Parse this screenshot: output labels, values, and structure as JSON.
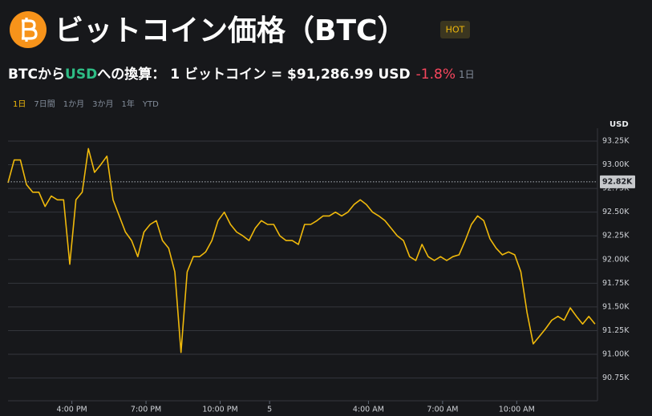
{
  "header": {
    "title": "ビットコイン価格（BTC）",
    "badge": "HOT",
    "conversion": {
      "from": "BTCから",
      "currency": "USD",
      "to": "への換算：",
      "rate": "1 ビットコイン = $91,286.99 USD",
      "change": "-1.8%",
      "period": "1日"
    },
    "tabs": [
      "1日",
      "7日間",
      "1か月",
      "3か月",
      "1年",
      "YTD"
    ],
    "active_tab": 0
  },
  "chart_data": {
    "type": "line",
    "color": "#f0b90b",
    "y_unit": "USD",
    "grid": true,
    "x": [
      "1:25 PM",
      "1:40 PM",
      "1:55 PM",
      "2:10 PM",
      "2:25 PM",
      "2:40 PM",
      "2:55 PM",
      "3:10 PM",
      "3:25 PM",
      "3:40 PM",
      "3:55 PM",
      "4:10 PM",
      "4:25 PM",
      "4:40 PM",
      "4:55 PM",
      "5:10 PM",
      "5:25 PM",
      "5:40 PM",
      "5:55 PM",
      "6:10 PM",
      "6:25 PM",
      "6:40 PM",
      "6:55 PM",
      "7:10 PM",
      "7:25 PM",
      "7:40 PM",
      "7:55 PM",
      "8:10 PM",
      "8:25 PM",
      "8:40 PM",
      "8:55 PM",
      "9:10 PM",
      "9:25 PM",
      "9:40 PM",
      "9:55 PM",
      "10:10 PM",
      "10:25 PM",
      "10:40 PM",
      "10:55 PM",
      "11:10 PM",
      "11:25 PM",
      "11:40 PM",
      "11:55 PM",
      "12:10 AM",
      "12:25 AM",
      "12:40 AM",
      "12:55 AM",
      "1:10 AM",
      "1:25 AM",
      "1:40 AM",
      "1:55 AM",
      "2:10 AM",
      "2:25 AM",
      "2:40 AM",
      "2:55 AM",
      "3:10 AM",
      "3:25 AM",
      "3:40 AM",
      "3:55 AM",
      "4:10 AM",
      "4:25 AM",
      "4:40 AM",
      "4:55 AM",
      "5:10 AM",
      "5:25 AM",
      "5:40 AM",
      "5:55 AM",
      "6:10 AM",
      "6:25 AM",
      "6:40 AM",
      "6:55 AM",
      "7:10 AM",
      "7:25 AM",
      "7:40 AM",
      "7:55 AM",
      "8:10 AM",
      "8:25 AM",
      "8:40 AM",
      "8:55 AM",
      "9:10 AM",
      "9:25 AM",
      "9:40 AM",
      "9:55 AM",
      "10:10 AM",
      "10:25 AM",
      "10:40 AM",
      "10:55 AM",
      "11:10 AM",
      "11:25 AM",
      "11:40 AM",
      "11:55 AM",
      "12:10 PM",
      "12:25 PM",
      "12:40 PM",
      "12:55 PM",
      "1:10 PM"
    ],
    "values": [
      92810,
      93050,
      93050,
      92790,
      92710,
      92710,
      92560,
      92670,
      92630,
      92630,
      91950,
      92630,
      92710,
      93170,
      92920,
      93000,
      93090,
      92630,
      92460,
      92290,
      92200,
      92030,
      92290,
      92370,
      92410,
      92200,
      92120,
      91870,
      91020,
      91870,
      92030,
      92030,
      92080,
      92200,
      92410,
      92500,
      92370,
      92290,
      92250,
      92200,
      92330,
      92410,
      92370,
      92370,
      92250,
      92200,
      92200,
      92160,
      92370,
      92370,
      92410,
      92460,
      92460,
      92500,
      92460,
      92500,
      92580,
      92630,
      92580,
      92500,
      92460,
      92410,
      92330,
      92250,
      92200,
      92030,
      91990,
      92160,
      92030,
      91990,
      92030,
      91990,
      92030,
      92050,
      92200,
      92370,
      92460,
      92410,
      92220,
      92120,
      92050,
      92080,
      92050,
      91870,
      91440,
      91110,
      91190,
      91270,
      91360,
      91400,
      91360,
      91490,
      91400,
      91320,
      91400,
      91320
    ],
    "xlim": [
      "1:25 PM",
      "1:16 PM"
    ],
    "xticks": [
      "4:00 PM",
      "7:00 PM",
      "10:00 PM",
      {
        "value": "12:00 AM",
        "label": "5"
      },
      "4:00 AM",
      "7:00 AM",
      "10:00 AM"
    ],
    "ylim": [
      90510,
      93385
    ],
    "yticks": [
      {
        "value": 90750,
        "label": "90.75K"
      },
      {
        "value": 91000,
        "label": "91.00K"
      },
      {
        "value": 91250,
        "label": "91.25K"
      },
      {
        "value": 91500,
        "label": "91.50K"
      },
      {
        "value": 91750,
        "label": "91.75K"
      },
      {
        "value": 92000,
        "label": "92.00K"
      },
      {
        "value": 92250,
        "label": "92.25K"
      },
      {
        "value": 92500,
        "label": "92.50K"
      },
      {
        "value": 92750,
        "label": "92.75K"
      },
      {
        "value": 93000,
        "label": "93.00K"
      },
      {
        "value": 93250,
        "label": "93.25K"
      }
    ],
    "reference_line": {
      "value": 92820,
      "label": "92.82K"
    }
  }
}
